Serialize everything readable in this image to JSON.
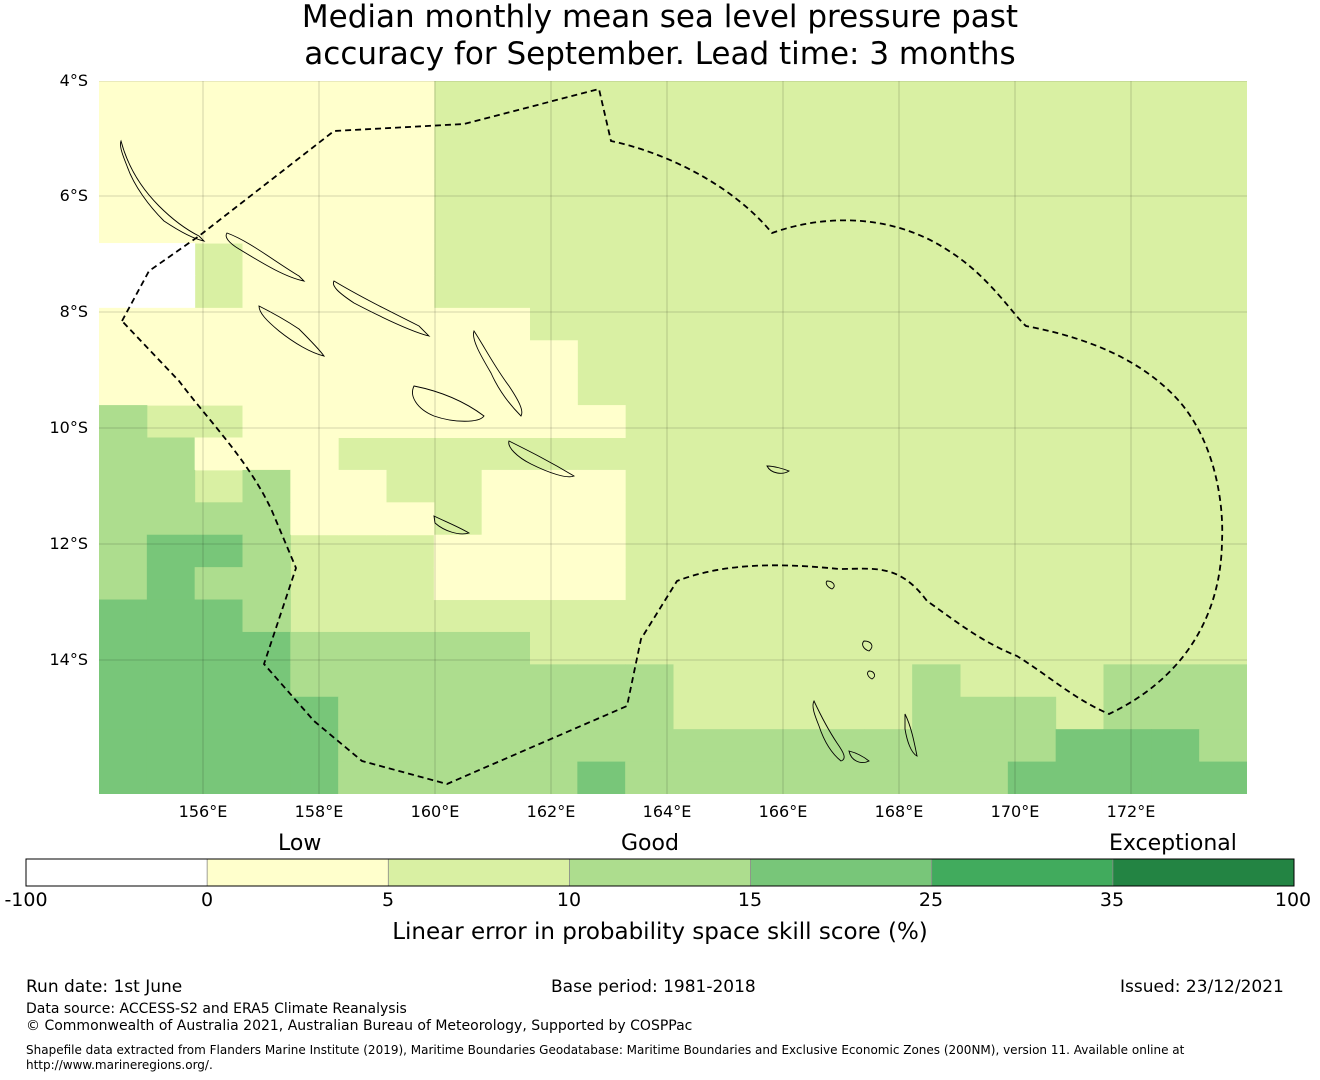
{
  "title": {
    "line1": "Median monthly mean sea level pressure past",
    "line2": "accuracy for September. Lead time: 3 months"
  },
  "map": {
    "lat_labels": [
      "4°S",
      "6°S",
      "8°S",
      "10°S",
      "12°S",
      "14°S"
    ],
    "lon_labels": [
      "156°E",
      "158°E",
      "160°E",
      "162°E",
      "164°E",
      "166°E",
      "168°E",
      "170°E",
      "172°E"
    ],
    "legend_colors": {
      "none": "#ffffff",
      "low": "#ffffcc",
      "good_low": "#d9f0a3",
      "good_high": "#addd8e",
      "high": "#78c679",
      "higher": "#41ab5d",
      "exceptional": "#238443"
    }
  },
  "colorbar": {
    "categories": [
      "Low",
      "Good",
      "Exceptional"
    ],
    "ticks": [
      "-100",
      "0",
      "5",
      "10",
      "15",
      "25",
      "35",
      "100"
    ],
    "colors": [
      "#ffffff",
      "#ffffcc",
      "#d9f0a3",
      "#addd8e",
      "#78c679",
      "#41ab5d",
      "#238443"
    ],
    "label": "Linear error in probability space skill score (%)"
  },
  "footer": {
    "run_date": "Run date: 1st June",
    "base_period": "Base period: 1981-2018",
    "issued": "Issued: 23/12/2021",
    "data_source": "Data source: ACCESS-S2 and ERA5 Climate Reanalysis",
    "copyright": "© Commonwealth of Australia 2021, Australian Bureau of Meteorology, Supported by COSPPac",
    "shapefile_line1": "Shapefile data extracted from Flanders Marine Institute (2019), Maritime Boundaries Geodatabase: Maritime Boundaries and Exclusive Economic Zones (200NM), version 11. Available online at",
    "shapefile_line2": "http://www.marineregions.org/."
  }
}
